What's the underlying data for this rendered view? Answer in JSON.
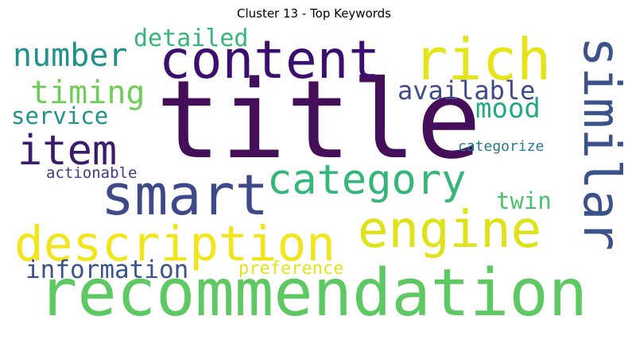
{
  "title": "Cluster 13 - Top Keywords",
  "words": {
    "title": {
      "text": "title",
      "color": "#440e59"
    },
    "recommendation": {
      "text": "recommendation",
      "color": "#5ec962"
    },
    "content": {
      "text": "content",
      "color": "#3b0f70"
    },
    "rich": {
      "text": "rich",
      "color": "#e5e419"
    },
    "similar": {
      "text": "similar",
      "color": "#3b528b"
    },
    "description": {
      "text": "description",
      "color": "#f1e51d"
    },
    "engine": {
      "text": "engine",
      "color": "#dde318"
    },
    "smart": {
      "text": "smart",
      "color": "#3e4989"
    },
    "category": {
      "text": "category",
      "color": "#35b779"
    },
    "item": {
      "text": "item",
      "color": "#3b1b6a"
    },
    "number": {
      "text": "number",
      "color": "#21918c"
    },
    "detailed": {
      "text": "detailed",
      "color": "#35b779"
    },
    "timing": {
      "text": "timing",
      "color": "#6ece58"
    },
    "available": {
      "text": "available",
      "color": "#3e4a89"
    },
    "mood": {
      "text": "mood",
      "color": "#25ab82"
    },
    "service": {
      "text": "service",
      "color": "#21918c"
    },
    "categorize": {
      "text": "categorize",
      "color": "#2a788e"
    },
    "actionable": {
      "text": "actionable",
      "color": "#443983"
    },
    "twin": {
      "text": "twin",
      "color": "#4ac16d"
    },
    "information": {
      "text": "information",
      "color": "#3b528b"
    },
    "preference": {
      "text": "preference",
      "color": "#e5e419"
    }
  }
}
